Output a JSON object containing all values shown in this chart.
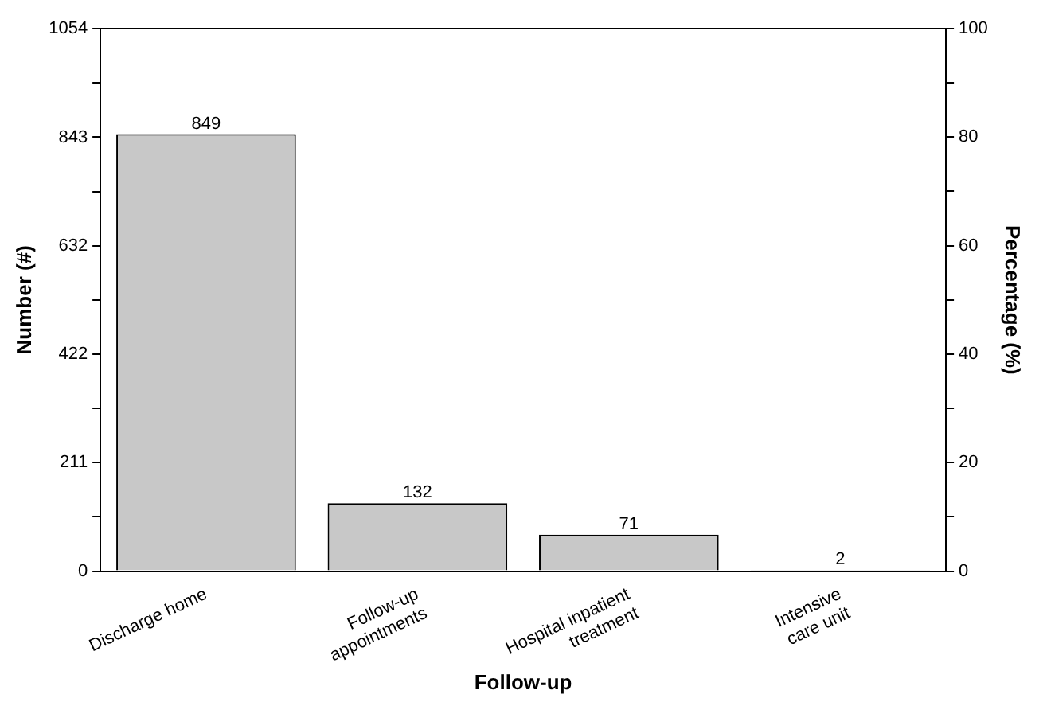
{
  "chart_data": {
    "type": "bar",
    "xlabel": "Follow-up",
    "ylabel": "Number (#)",
    "y2label": "Percentage (%)",
    "categories": [
      "Discharge home",
      "Follow-up\nappointments",
      "Hospital inpatient\ntreatment",
      "Intensive\ncare unit"
    ],
    "values": [
      849,
      132,
      71,
      2
    ],
    "color": "#c8c8c8",
    "data_labels": true,
    "grid": false,
    "legend": false,
    "ylim": [
      0,
      1054
    ],
    "yticks": [
      0,
      {
        "value": 105.5,
        "label": null
      },
      211,
      {
        "value": 316.5,
        "label": null
      },
      422,
      {
        "value": 527,
        "label": null
      },
      632,
      {
        "value": 737.5,
        "label": null
      },
      843,
      {
        "value": 948.5,
        "label": null
      },
      1054
    ],
    "y2lim": [
      0,
      100
    ],
    "y2ticks": [
      0,
      {
        "value": 10,
        "label": null
      },
      20,
      {
        "value": 30,
        "label": null
      },
      40,
      {
        "value": 50,
        "label": null
      },
      60,
      {
        "value": 70,
        "label": null
      },
      80,
      {
        "value": 90,
        "label": null
      },
      100
    ]
  }
}
